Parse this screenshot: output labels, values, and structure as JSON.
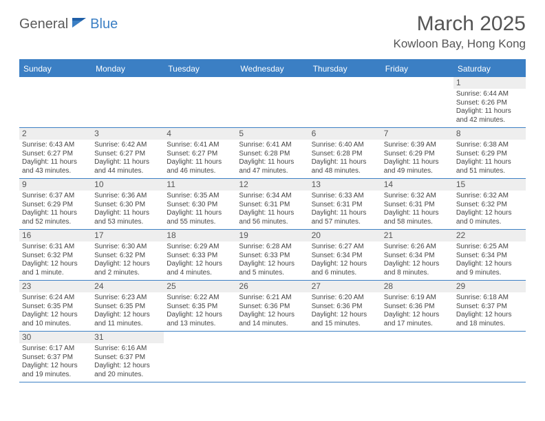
{
  "logo": {
    "part1": "General",
    "part2": "Blue"
  },
  "title": "March 2025",
  "location": "Kowloon Bay, Hong Kong",
  "colors": {
    "accent": "#3b7fc4",
    "muted": "#555555",
    "cellHeader": "#eeeeee"
  },
  "weekdays": [
    "Sunday",
    "Monday",
    "Tuesday",
    "Wednesday",
    "Thursday",
    "Friday",
    "Saturday"
  ],
  "weeks": [
    [
      null,
      null,
      null,
      null,
      null,
      null,
      {
        "n": "1",
        "sr": "Sunrise: 6:44 AM",
        "ss": "Sunset: 6:26 PM",
        "dl1": "Daylight: 11 hours",
        "dl2": "and 42 minutes."
      }
    ],
    [
      {
        "n": "2",
        "sr": "Sunrise: 6:43 AM",
        "ss": "Sunset: 6:27 PM",
        "dl1": "Daylight: 11 hours",
        "dl2": "and 43 minutes."
      },
      {
        "n": "3",
        "sr": "Sunrise: 6:42 AM",
        "ss": "Sunset: 6:27 PM",
        "dl1": "Daylight: 11 hours",
        "dl2": "and 44 minutes."
      },
      {
        "n": "4",
        "sr": "Sunrise: 6:41 AM",
        "ss": "Sunset: 6:27 PM",
        "dl1": "Daylight: 11 hours",
        "dl2": "and 46 minutes."
      },
      {
        "n": "5",
        "sr": "Sunrise: 6:41 AM",
        "ss": "Sunset: 6:28 PM",
        "dl1": "Daylight: 11 hours",
        "dl2": "and 47 minutes."
      },
      {
        "n": "6",
        "sr": "Sunrise: 6:40 AM",
        "ss": "Sunset: 6:28 PM",
        "dl1": "Daylight: 11 hours",
        "dl2": "and 48 minutes."
      },
      {
        "n": "7",
        "sr": "Sunrise: 6:39 AM",
        "ss": "Sunset: 6:29 PM",
        "dl1": "Daylight: 11 hours",
        "dl2": "and 49 minutes."
      },
      {
        "n": "8",
        "sr": "Sunrise: 6:38 AM",
        "ss": "Sunset: 6:29 PM",
        "dl1": "Daylight: 11 hours",
        "dl2": "and 51 minutes."
      }
    ],
    [
      {
        "n": "9",
        "sr": "Sunrise: 6:37 AM",
        "ss": "Sunset: 6:29 PM",
        "dl1": "Daylight: 11 hours",
        "dl2": "and 52 minutes."
      },
      {
        "n": "10",
        "sr": "Sunrise: 6:36 AM",
        "ss": "Sunset: 6:30 PM",
        "dl1": "Daylight: 11 hours",
        "dl2": "and 53 minutes."
      },
      {
        "n": "11",
        "sr": "Sunrise: 6:35 AM",
        "ss": "Sunset: 6:30 PM",
        "dl1": "Daylight: 11 hours",
        "dl2": "and 55 minutes."
      },
      {
        "n": "12",
        "sr": "Sunrise: 6:34 AM",
        "ss": "Sunset: 6:31 PM",
        "dl1": "Daylight: 11 hours",
        "dl2": "and 56 minutes."
      },
      {
        "n": "13",
        "sr": "Sunrise: 6:33 AM",
        "ss": "Sunset: 6:31 PM",
        "dl1": "Daylight: 11 hours",
        "dl2": "and 57 minutes."
      },
      {
        "n": "14",
        "sr": "Sunrise: 6:32 AM",
        "ss": "Sunset: 6:31 PM",
        "dl1": "Daylight: 11 hours",
        "dl2": "and 58 minutes."
      },
      {
        "n": "15",
        "sr": "Sunrise: 6:32 AM",
        "ss": "Sunset: 6:32 PM",
        "dl1": "Daylight: 12 hours",
        "dl2": "and 0 minutes."
      }
    ],
    [
      {
        "n": "16",
        "sr": "Sunrise: 6:31 AM",
        "ss": "Sunset: 6:32 PM",
        "dl1": "Daylight: 12 hours",
        "dl2": "and 1 minute."
      },
      {
        "n": "17",
        "sr": "Sunrise: 6:30 AM",
        "ss": "Sunset: 6:32 PM",
        "dl1": "Daylight: 12 hours",
        "dl2": "and 2 minutes."
      },
      {
        "n": "18",
        "sr": "Sunrise: 6:29 AM",
        "ss": "Sunset: 6:33 PM",
        "dl1": "Daylight: 12 hours",
        "dl2": "and 4 minutes."
      },
      {
        "n": "19",
        "sr": "Sunrise: 6:28 AM",
        "ss": "Sunset: 6:33 PM",
        "dl1": "Daylight: 12 hours",
        "dl2": "and 5 minutes."
      },
      {
        "n": "20",
        "sr": "Sunrise: 6:27 AM",
        "ss": "Sunset: 6:34 PM",
        "dl1": "Daylight: 12 hours",
        "dl2": "and 6 minutes."
      },
      {
        "n": "21",
        "sr": "Sunrise: 6:26 AM",
        "ss": "Sunset: 6:34 PM",
        "dl1": "Daylight: 12 hours",
        "dl2": "and 8 minutes."
      },
      {
        "n": "22",
        "sr": "Sunrise: 6:25 AM",
        "ss": "Sunset: 6:34 PM",
        "dl1": "Daylight: 12 hours",
        "dl2": "and 9 minutes."
      }
    ],
    [
      {
        "n": "23",
        "sr": "Sunrise: 6:24 AM",
        "ss": "Sunset: 6:35 PM",
        "dl1": "Daylight: 12 hours",
        "dl2": "and 10 minutes."
      },
      {
        "n": "24",
        "sr": "Sunrise: 6:23 AM",
        "ss": "Sunset: 6:35 PM",
        "dl1": "Daylight: 12 hours",
        "dl2": "and 11 minutes."
      },
      {
        "n": "25",
        "sr": "Sunrise: 6:22 AM",
        "ss": "Sunset: 6:35 PM",
        "dl1": "Daylight: 12 hours",
        "dl2": "and 13 minutes."
      },
      {
        "n": "26",
        "sr": "Sunrise: 6:21 AM",
        "ss": "Sunset: 6:36 PM",
        "dl1": "Daylight: 12 hours",
        "dl2": "and 14 minutes."
      },
      {
        "n": "27",
        "sr": "Sunrise: 6:20 AM",
        "ss": "Sunset: 6:36 PM",
        "dl1": "Daylight: 12 hours",
        "dl2": "and 15 minutes."
      },
      {
        "n": "28",
        "sr": "Sunrise: 6:19 AM",
        "ss": "Sunset: 6:36 PM",
        "dl1": "Daylight: 12 hours",
        "dl2": "and 17 minutes."
      },
      {
        "n": "29",
        "sr": "Sunrise: 6:18 AM",
        "ss": "Sunset: 6:37 PM",
        "dl1": "Daylight: 12 hours",
        "dl2": "and 18 minutes."
      }
    ],
    [
      {
        "n": "30",
        "sr": "Sunrise: 6:17 AM",
        "ss": "Sunset: 6:37 PM",
        "dl1": "Daylight: 12 hours",
        "dl2": "and 19 minutes."
      },
      {
        "n": "31",
        "sr": "Sunrise: 6:16 AM",
        "ss": "Sunset: 6:37 PM",
        "dl1": "Daylight: 12 hours",
        "dl2": "and 20 minutes."
      },
      null,
      null,
      null,
      null,
      null
    ]
  ]
}
